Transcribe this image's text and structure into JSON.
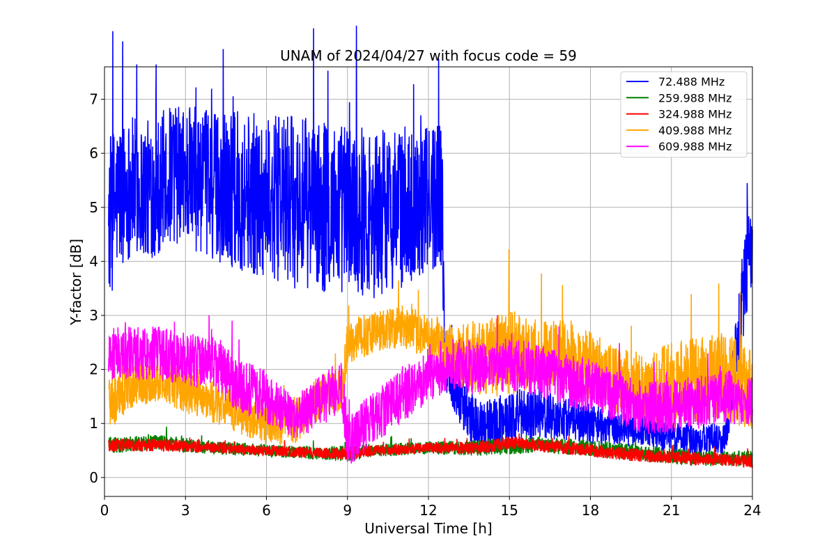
{
  "chart_data": {
    "type": "line",
    "title": "UNAM of 2024/04/27 with focus code = 59",
    "xlabel": "Universal Time [h]",
    "ylabel": "Y-factor [dB]",
    "xlim": [
      0,
      24
    ],
    "ylim": [
      -0.35,
      7.6
    ],
    "xticks": [
      0,
      3,
      6,
      9,
      12,
      15,
      18,
      21,
      24
    ],
    "yticks": [
      0,
      1,
      2,
      3,
      4,
      5,
      6,
      7
    ],
    "grid": true,
    "legend_position": "top-right",
    "series": [
      {
        "name": " 72.488 MHz",
        "color": "#0000ff",
        "note": "gap from 12.6 h to 13.5 h not shown separately; envelope approx",
        "x": [
          0.15,
          0.5,
          1,
          1.5,
          2,
          2.3,
          3,
          4,
          5,
          6,
          7,
          8,
          9,
          10,
          11,
          12,
          12.5,
          12.6,
          13.5,
          14,
          15,
          16,
          17,
          18,
          19,
          20,
          21,
          22,
          23,
          23.8,
          24
        ],
        "y_center": [
          4.8,
          5.2,
          5.4,
          5.3,
          5.4,
          5.6,
          5.6,
          5.4,
          5.3,
          5.2,
          5.1,
          5.0,
          5.0,
          4.9,
          5.0,
          5.1,
          5.3,
          2.2,
          1.1,
          0.9,
          1.1,
          1.2,
          1.1,
          1.0,
          0.9,
          0.85,
          0.75,
          0.7,
          0.7,
          4.0,
          4.2
        ],
        "y_spread": [
          1.6,
          1.4,
          1.3,
          1.3,
          1.3,
          1.3,
          1.3,
          1.4,
          1.5,
          1.5,
          1.6,
          1.6,
          1.6,
          1.6,
          1.5,
          1.4,
          1.4,
          0.6,
          0.5,
          0.5,
          0.5,
          0.5,
          0.4,
          0.4,
          0.3,
          0.3,
          0.3,
          0.3,
          0.3,
          1.0,
          0.9
        ]
      },
      {
        "name": "259.988 MHz",
        "color": "#008000",
        "x": [
          0.15,
          2,
          4,
          6,
          8,
          9,
          10,
          12,
          14,
          16,
          18,
          20,
          22,
          24
        ],
        "y_center": [
          0.6,
          0.65,
          0.55,
          0.5,
          0.45,
          0.45,
          0.5,
          0.55,
          0.55,
          0.6,
          0.55,
          0.45,
          0.35,
          0.35
        ],
        "y_spread": [
          0.15,
          0.15,
          0.12,
          0.12,
          0.12,
          0.15,
          0.12,
          0.12,
          0.15,
          0.15,
          0.15,
          0.15,
          0.15,
          0.15
        ]
      },
      {
        "name": "324.988 MHz",
        "color": "#ff0000",
        "x": [
          0.15,
          2,
          4,
          6,
          8,
          9,
          10,
          12,
          14,
          15,
          16,
          18,
          20,
          22,
          24
        ],
        "y_center": [
          0.6,
          0.6,
          0.55,
          0.5,
          0.45,
          0.45,
          0.5,
          0.55,
          0.55,
          0.65,
          0.6,
          0.5,
          0.4,
          0.35,
          0.3
        ],
        "y_spread": [
          0.12,
          0.12,
          0.1,
          0.1,
          0.1,
          0.12,
          0.1,
          0.1,
          0.12,
          0.12,
          0.12,
          0.12,
          0.12,
          0.12,
          0.12
        ]
      },
      {
        "name": "409.988 MHz",
        "color": "#ffa500",
        "x": [
          0.15,
          1,
          2,
          3,
          4,
          5,
          6,
          7,
          8,
          8.8,
          9,
          10,
          11,
          12,
          13,
          14,
          15,
          16,
          17,
          18,
          19,
          20,
          21,
          22,
          23,
          24
        ],
        "y_center": [
          1.3,
          1.7,
          1.8,
          1.6,
          1.4,
          1.2,
          1.0,
          1.0,
          1.5,
          1.6,
          2.5,
          2.7,
          2.8,
          2.6,
          2.3,
          2.2,
          2.3,
          2.3,
          2.2,
          2.0,
          1.8,
          1.6,
          1.7,
          1.8,
          1.9,
          1.6
        ],
        "y_spread": [
          0.5,
          0.4,
          0.4,
          0.4,
          0.4,
          0.4,
          0.4,
          0.4,
          0.4,
          0.4,
          0.4,
          0.4,
          0.4,
          0.4,
          0.6,
          0.7,
          0.8,
          0.7,
          0.7,
          0.7,
          0.6,
          0.7,
          0.8,
          0.8,
          0.8,
          0.8
        ]
      },
      {
        "name": "609.988 MHz",
        "color": "#ff00ff",
        "x": [
          0.15,
          1,
          2,
          3,
          4,
          5,
          6,
          7,
          8,
          8.8,
          9,
          10,
          11,
          12,
          13,
          14,
          15,
          16,
          17,
          18,
          19,
          20,
          21,
          22,
          23,
          24
        ],
        "y_center": [
          2.3,
          2.3,
          2.3,
          2.2,
          2.1,
          1.7,
          1.5,
          1.1,
          1.4,
          1.7,
          0.7,
          1.1,
          1.5,
          1.9,
          2.1,
          2.0,
          2.1,
          2.0,
          1.8,
          1.7,
          1.5,
          1.3,
          1.3,
          1.4,
          1.5,
          1.4
        ],
        "y_spread": [
          0.5,
          0.5,
          0.5,
          0.5,
          0.5,
          0.5,
          0.5,
          0.4,
          0.5,
          0.5,
          0.5,
          0.5,
          0.5,
          0.5,
          0.5,
          0.5,
          0.5,
          0.5,
          0.5,
          0.5,
          0.5,
          0.5,
          0.5,
          0.5,
          0.5,
          0.5
        ]
      }
    ]
  }
}
